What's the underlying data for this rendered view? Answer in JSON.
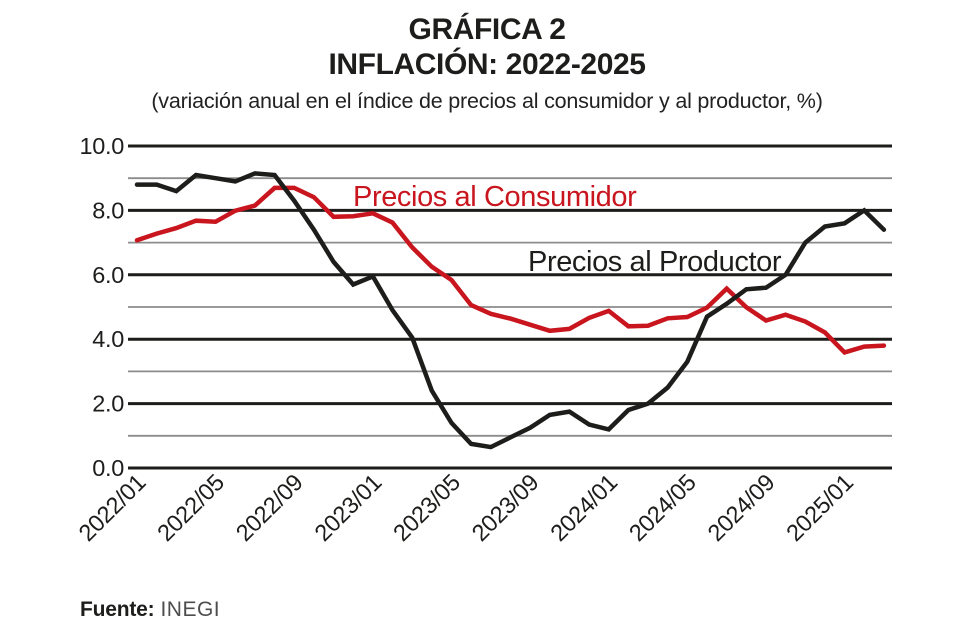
{
  "header": {
    "title_line1": "GRÁFICA 2",
    "title_line2": "INFLACIÓN: 2022-2025",
    "subtitle": "(variación anual en el índice de precios al consumidor y al productor, %)"
  },
  "footer": {
    "source_label": "Fuente:",
    "source_value": "INEGI"
  },
  "colors": {
    "consumer_red": "#c9151e",
    "producer_black": "#1d1d1b",
    "grid_major": "#1d1d1b",
    "grid_minor": "#8c8c8c",
    "tick_text": "#1d1d1b"
  },
  "chart_data": {
    "type": "line",
    "title": "GRÁFICA 2 — INFLACIÓN: 2022-2025",
    "subtitle": "variación anual en el índice de precios al consumidor y al productor, %",
    "x": [
      "2022/01",
      "2022/02",
      "2022/03",
      "2022/04",
      "2022/05",
      "2022/06",
      "2022/07",
      "2022/08",
      "2022/09",
      "2022/10",
      "2022/11",
      "2022/12",
      "2023/01",
      "2023/02",
      "2023/03",
      "2023/04",
      "2023/05",
      "2023/06",
      "2023/07",
      "2023/08",
      "2023/09",
      "2023/10",
      "2023/11",
      "2023/12",
      "2024/01",
      "2024/02",
      "2024/03",
      "2024/04",
      "2024/05",
      "2024/06",
      "2024/07",
      "2024/08",
      "2024/09",
      "2024/10",
      "2024/11",
      "2024/12",
      "2025/01",
      "2025/02",
      "2025/03"
    ],
    "x_tick_labels": [
      "2022/01",
      "2022/05",
      "2022/09",
      "2023/01",
      "2023/05",
      "2023/09",
      "2024/01",
      "2024/05",
      "2024/09",
      "2025/01"
    ],
    "x_tick_every": 4,
    "y_ticks": [
      0,
      2,
      4,
      6,
      8,
      10
    ],
    "y_tick_labels": [
      "0.0",
      "2.0",
      "4.0",
      "6.0",
      "8.0",
      "10.0"
    ],
    "y_minor_gridlines": [
      1,
      3,
      5,
      7,
      9
    ],
    "ylim": [
      0,
      10
    ],
    "grid": "horizontal major (dark) and minor (gray)",
    "legend": "inline text labels on plot",
    "series": [
      {
        "name": "Precios al Consumidor",
        "color": "#c9151e",
        "values": [
          7.07,
          7.28,
          7.45,
          7.68,
          7.65,
          7.99,
          8.15,
          8.7,
          8.7,
          8.41,
          7.8,
          7.82,
          7.91,
          7.62,
          6.85,
          6.25,
          5.84,
          5.06,
          4.79,
          4.64,
          4.45,
          4.26,
          4.32,
          4.66,
          4.88,
          4.4,
          4.42,
          4.65,
          4.69,
          4.98,
          5.57,
          4.99,
          4.58,
          4.76,
          4.55,
          4.21,
          3.59,
          3.77,
          3.8
        ]
      },
      {
        "name": "Precios al Productor",
        "color": "#1d1d1b",
        "values": [
          8.8,
          8.8,
          8.6,
          9.1,
          9.0,
          8.9,
          9.15,
          9.1,
          8.3,
          7.4,
          6.4,
          5.7,
          5.95,
          4.9,
          4.05,
          2.4,
          1.4,
          0.75,
          0.65,
          0.95,
          1.25,
          1.65,
          1.75,
          1.35,
          1.2,
          1.8,
          2.0,
          2.5,
          3.3,
          4.7,
          5.1,
          5.55,
          5.6,
          6.0,
          7.0,
          7.5,
          7.6,
          8.0,
          7.4
        ]
      }
    ]
  }
}
